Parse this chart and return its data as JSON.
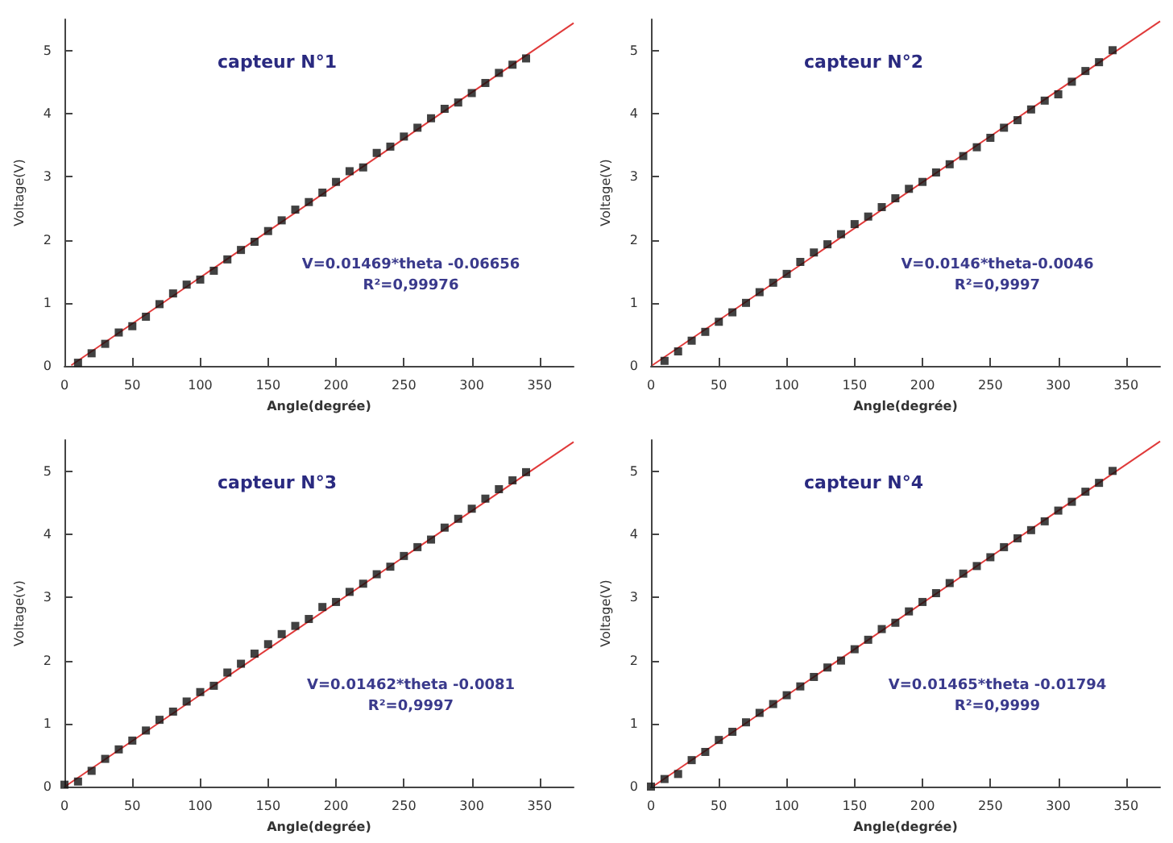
{
  "chart_data": [
    {
      "type": "scatter",
      "title": "capteur N°1",
      "xlabel": "Angle(degrée)",
      "ylabel": "Voltage(V)",
      "annotations": [
        "V=0.01469*theta -0.06656",
        "R²=0,99976"
      ],
      "xlim": [
        0,
        375
      ],
      "ylim": [
        0,
        5.5
      ],
      "xticks": [
        0,
        50,
        100,
        150,
        200,
        250,
        300,
        350
      ],
      "yticks": [
        0,
        1,
        2,
        3,
        4,
        5
      ],
      "series": [
        {
          "color": "#111111",
          "marker": "square",
          "x": [
            10,
            20,
            30,
            40,
            50,
            60,
            70,
            80,
            90,
            100,
            110,
            120,
            130,
            140,
            150,
            160,
            170,
            180,
            190,
            200,
            210,
            220,
            230,
            240,
            250,
            260,
            270,
            280,
            290,
            300,
            310,
            320,
            330,
            340
          ],
          "values": [
            0.05,
            0.2,
            0.35,
            0.53,
            0.63,
            0.78,
            0.98,
            1.15,
            1.29,
            1.37,
            1.51,
            1.69,
            1.84,
            1.97,
            2.14,
            2.31,
            2.48,
            2.6,
            2.75,
            2.92,
            3.09,
            3.15,
            3.38,
            3.48,
            3.64,
            3.78,
            3.93,
            4.08,
            4.18,
            4.33,
            4.49,
            4.65,
            4.78,
            4.88
          ]
        },
        {
          "type": "line",
          "marker": "none",
          "color": "#e03a3a",
          "x": [
            5,
            375
          ],
          "values": [
            0.01,
            5.44
          ]
        }
      ]
    },
    {
      "type": "scatter",
      "title": "capteur N°2",
      "xlabel": "Angle(degrée)",
      "ylabel": "Voltage(V)",
      "annotations": [
        "V=0.0146*theta-0.0046",
        "R²=0,9997"
      ],
      "xlim": [
        0,
        375
      ],
      "ylim": [
        0,
        5.5
      ],
      "xticks": [
        0,
        50,
        100,
        150,
        200,
        250,
        300,
        350
      ],
      "yticks": [
        0,
        1,
        2,
        3,
        4,
        5
      ],
      "series": [
        {
          "color": "#111111",
          "marker": "square",
          "x": [
            10,
            20,
            30,
            40,
            50,
            60,
            70,
            80,
            90,
            100,
            110,
            120,
            130,
            140,
            150,
            160,
            170,
            180,
            190,
            200,
            210,
            220,
            230,
            240,
            250,
            260,
            270,
            280,
            290,
            300,
            310,
            320,
            330,
            340
          ],
          "values": [
            0.08,
            0.23,
            0.4,
            0.54,
            0.7,
            0.85,
            1.0,
            1.17,
            1.32,
            1.46,
            1.65,
            1.8,
            1.93,
            2.09,
            2.25,
            2.37,
            2.52,
            2.66,
            2.81,
            2.92,
            3.07,
            3.2,
            3.33,
            3.47,
            3.62,
            3.78,
            3.9,
            4.07,
            4.21,
            4.31,
            4.51,
            4.68,
            4.82,
            5.01
          ]
        },
        {
          "type": "line",
          "marker": "none",
          "color": "#e03a3a",
          "x": [
            1,
            375
          ],
          "values": [
            0.01,
            5.47
          ]
        }
      ]
    },
    {
      "type": "scatter",
      "title": "capteur N°3",
      "xlabel": "Angle(degrée)",
      "ylabel": "Voltage(v)",
      "annotations": [
        "V=0.01462*theta -0.0081",
        "R²=0,9997"
      ],
      "xlim": [
        0,
        375
      ],
      "ylim": [
        0,
        5.5
      ],
      "xticks": [
        0,
        50,
        100,
        150,
        200,
        250,
        300,
        350
      ],
      "yticks": [
        0,
        1,
        2,
        3,
        4,
        5
      ],
      "series": [
        {
          "color": "#111111",
          "marker": "square",
          "x": [
            0,
            10,
            20,
            30,
            40,
            50,
            60,
            70,
            80,
            90,
            100,
            110,
            120,
            130,
            140,
            150,
            160,
            170,
            180,
            190,
            200,
            210,
            220,
            230,
            240,
            250,
            260,
            270,
            280,
            290,
            300,
            310,
            320,
            330,
            340
          ],
          "values": [
            0.03,
            0.08,
            0.25,
            0.44,
            0.59,
            0.73,
            0.89,
            1.06,
            1.19,
            1.35,
            1.5,
            1.6,
            1.81,
            1.95,
            2.11,
            2.26,
            2.42,
            2.55,
            2.66,
            2.85,
            2.93,
            3.09,
            3.22,
            3.37,
            3.49,
            3.66,
            3.8,
            3.92,
            4.11,
            4.25,
            4.41,
            4.57,
            4.72,
            4.86,
            4.99
          ]
        },
        {
          "type": "line",
          "marker": "none",
          "color": "#e03a3a",
          "x": [
            1,
            375
          ],
          "values": [
            0.01,
            5.47
          ]
        }
      ]
    },
    {
      "type": "scatter",
      "title": "capteur N°4",
      "xlabel": "Angle(degrée)",
      "ylabel": "Voltage(V)",
      "annotations": [
        "V=0.01465*theta -0.01794",
        "R²=0,9999"
      ],
      "xlim": [
        0,
        375
      ],
      "ylim": [
        0,
        5.5
      ],
      "xticks": [
        0,
        50,
        100,
        150,
        200,
        250,
        300,
        350
      ],
      "yticks": [
        0,
        1,
        2,
        3,
        4,
        5
      ],
      "series": [
        {
          "color": "#111111",
          "marker": "square",
          "x": [
            0,
            10,
            20,
            30,
            40,
            50,
            60,
            70,
            80,
            90,
            100,
            110,
            120,
            130,
            140,
            150,
            160,
            170,
            180,
            190,
            200,
            210,
            220,
            230,
            240,
            250,
            260,
            270,
            280,
            290,
            300,
            310,
            320,
            330,
            340
          ],
          "values": [
            0.0,
            0.12,
            0.2,
            0.42,
            0.55,
            0.74,
            0.87,
            1.02,
            1.17,
            1.31,
            1.45,
            1.59,
            1.74,
            1.89,
            2.0,
            2.18,
            2.33,
            2.5,
            2.6,
            2.78,
            2.93,
            3.07,
            3.23,
            3.38,
            3.5,
            3.64,
            3.8,
            3.94,
            4.07,
            4.21,
            4.38,
            4.52,
            4.68,
            4.82,
            5.01
          ]
        },
        {
          "type": "line",
          "marker": "none",
          "color": "#e03a3a",
          "x": [
            2,
            375
          ],
          "values": [
            0.01,
            5.48
          ]
        }
      ]
    }
  ]
}
